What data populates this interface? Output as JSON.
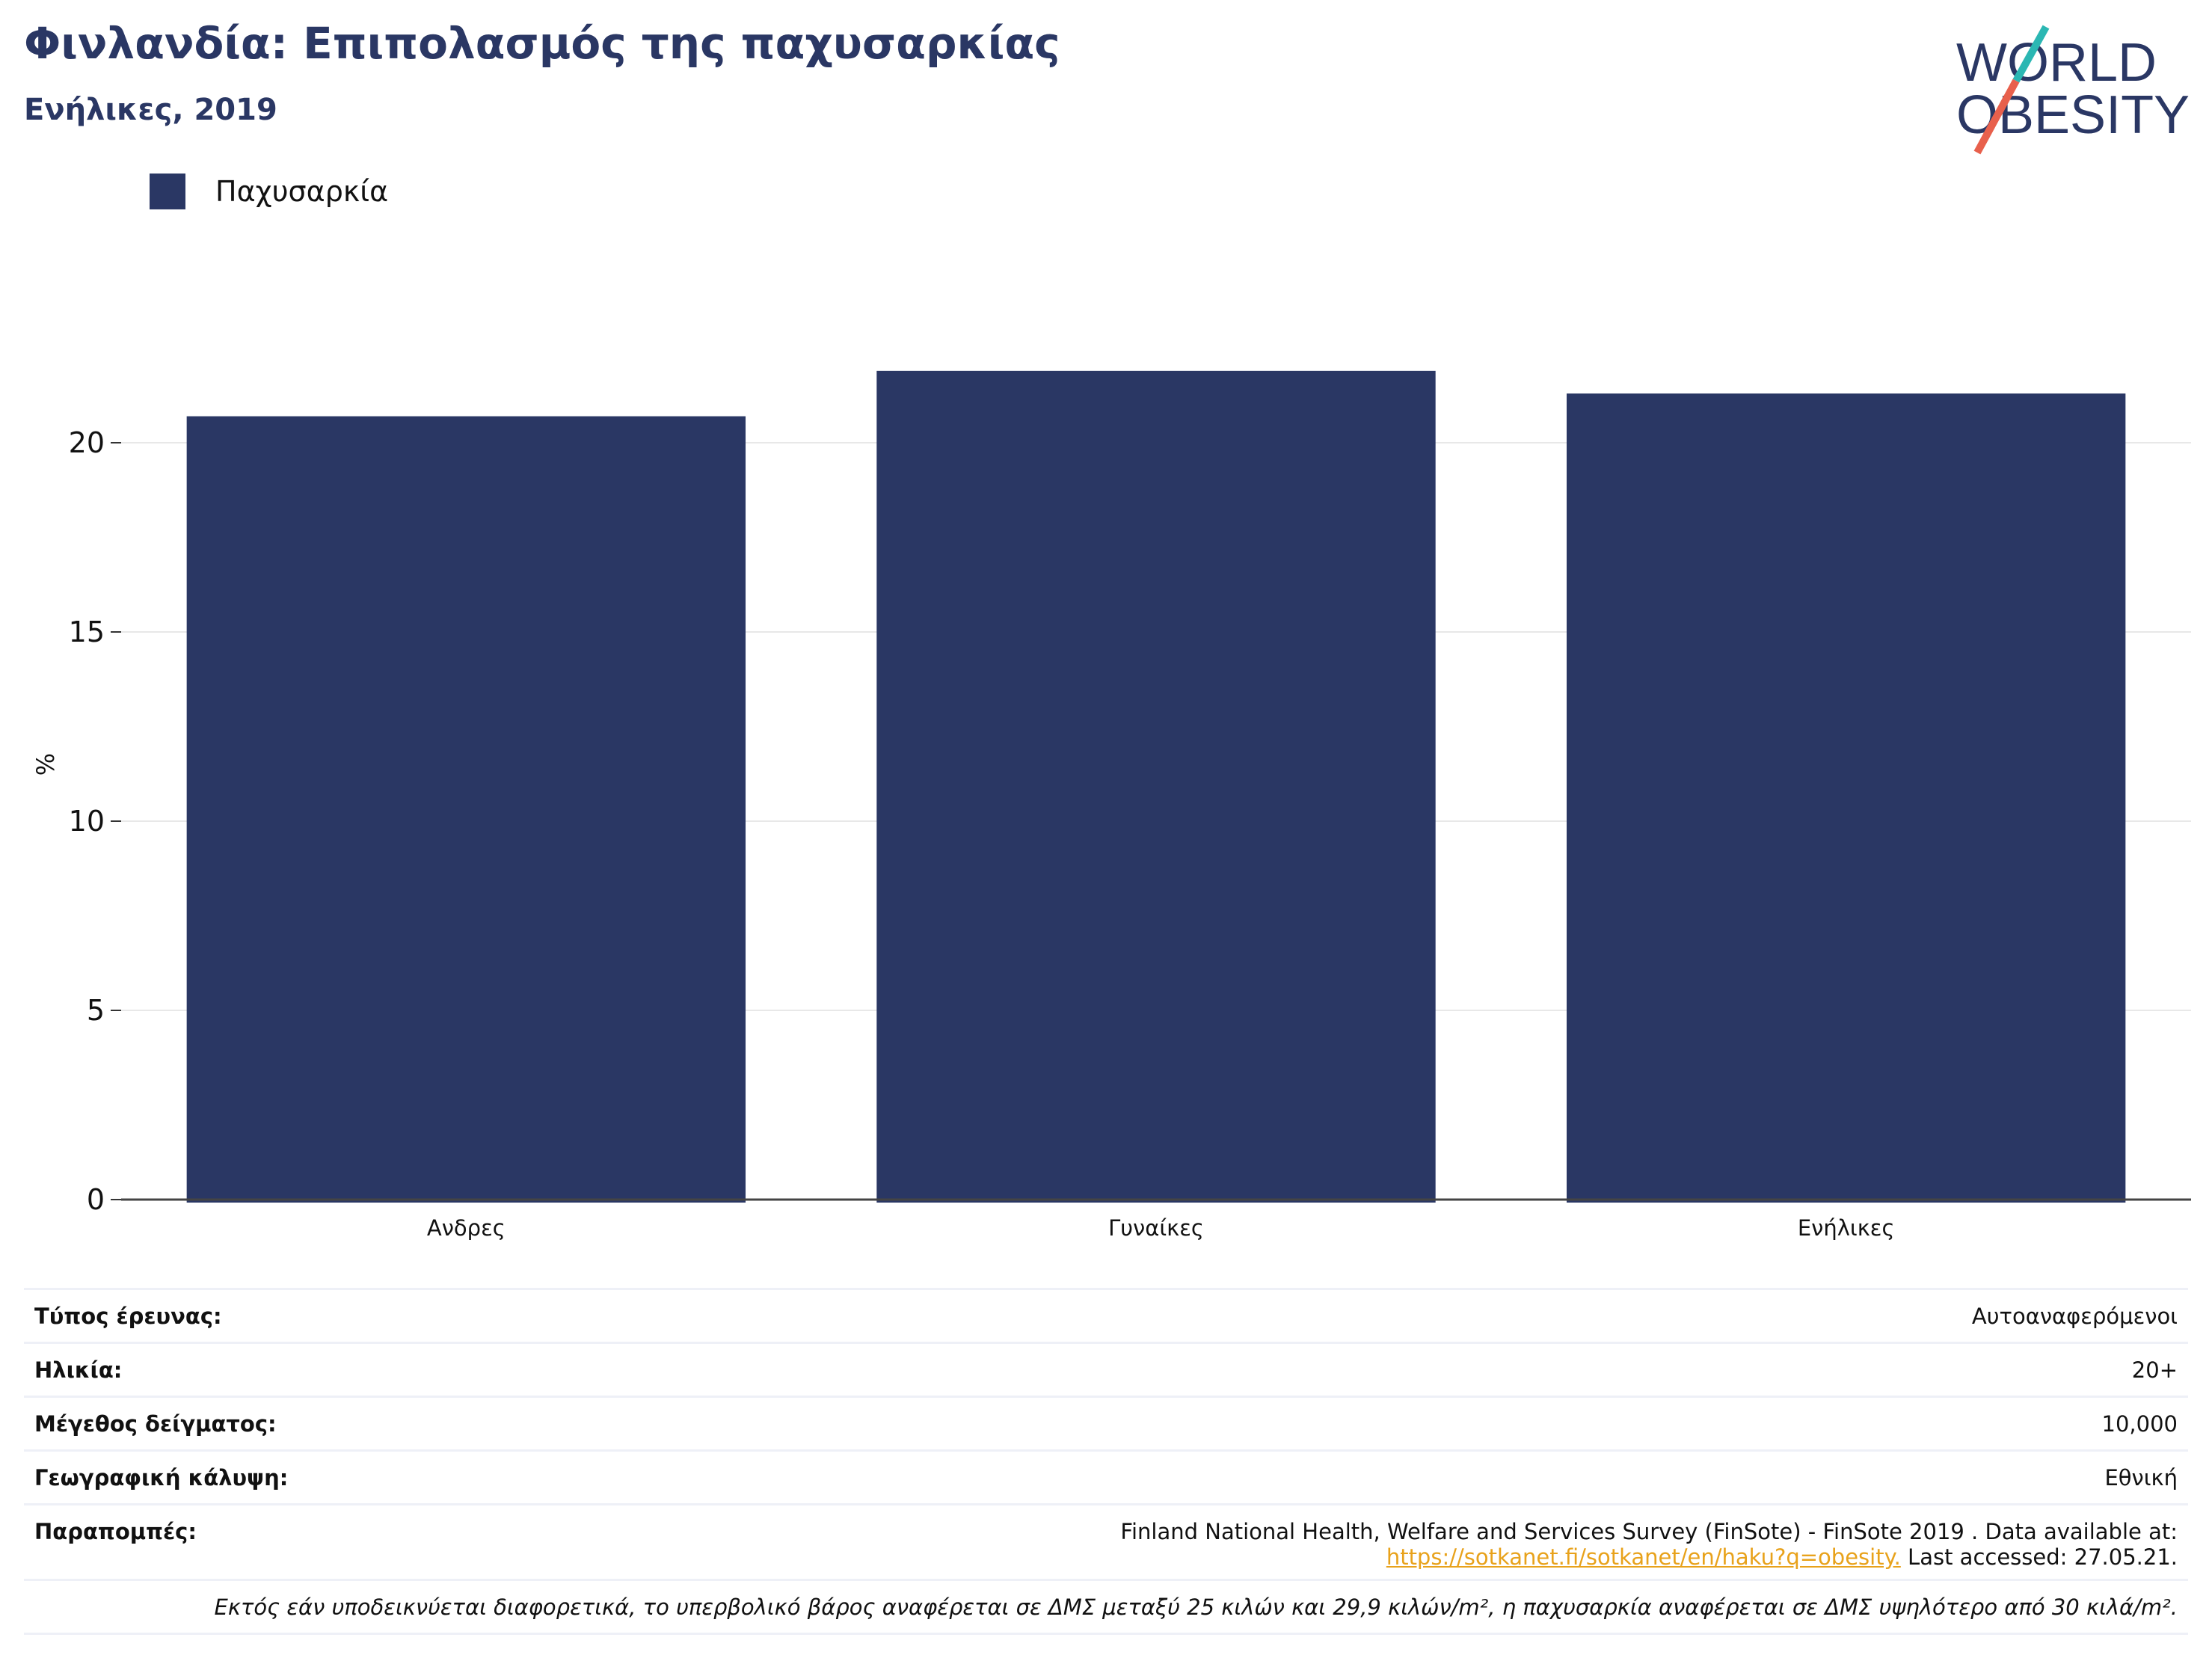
{
  "header": {
    "title": "Φινλανδία: Επιπολασμός της παχυσαρκίας",
    "subtitle": "Ενήλικες, 2019",
    "logo_text_line1": "WORLD",
    "logo_text_line2": "OBESITY"
  },
  "legend": {
    "label": "Παχυσαρκία"
  },
  "colors": {
    "bar": "#2a3764",
    "title": "#2a3764",
    "link": "#e8a21b",
    "logo_teal": "#2bb7b3",
    "logo_red": "#e8604c",
    "grid": "#e8e8e8"
  },
  "chart_data": {
    "type": "bar",
    "categories": [
      "Ανδρες",
      "Γυναίκες",
      "Ενήλικες"
    ],
    "series": [
      {
        "name": "Παχυσαρκία",
        "values": [
          20.7,
          21.9,
          21.3
        ]
      }
    ],
    "ylabel": "%",
    "yticks": [
      0,
      5,
      10,
      15,
      20
    ],
    "ylim": [
      0,
      22
    ],
    "grid": true,
    "legend_position": "top-left"
  },
  "metadata_table": {
    "rows": [
      {
        "label": "Τύπος έρευνας:",
        "value": "Αυτοαναφερόμενοι"
      },
      {
        "label": "Ηλικία:",
        "value": "20+"
      },
      {
        "label": "Μέγεθος δείγματος:",
        "value": "10,000"
      },
      {
        "label": "Γεωγραφική κάλυψη:",
        "value": "Εθνική"
      }
    ],
    "references": {
      "label": "Παραπομπές:",
      "line1": "Finland National Health, Welfare and Services Survey (FinSote) - FinSote 2019 . Data available at:",
      "link": "https://sotkanet.fi/sotkanet/en/haku?q=obesity.",
      "suffix": " Last accessed: 27.05.21."
    },
    "note": "Εκτός εάν υποδεικνύεται διαφορετικά, το υπερβολικό βάρος αναφέρεται σε ΔΜΣ μεταξύ 25 κιλών και 29,9 κιλών/m², η παχυσαρκία αναφέρεται σε ΔΜΣ υψηλότερο από 30 κιλά/m²."
  }
}
